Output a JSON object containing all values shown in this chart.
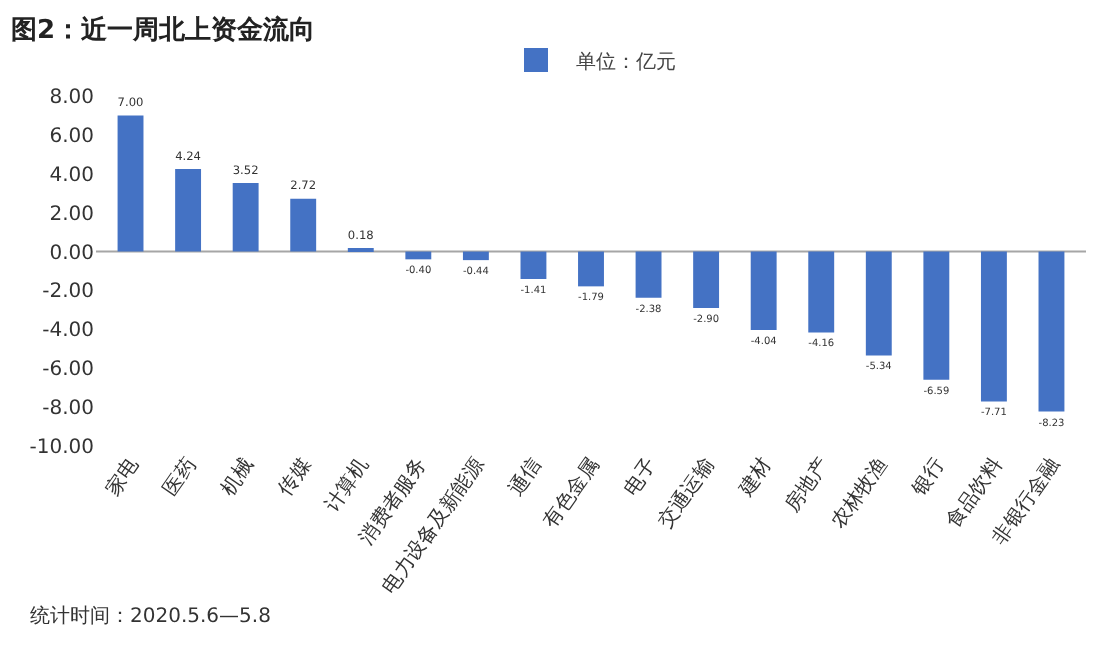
{
  "chart_data": {
    "type": "bar",
    "title": "图2：近一周北上资金流向",
    "categories": [
      "家电",
      "医药",
      "机械",
      "传媒",
      "计算机",
      "消费者服务",
      "电力设备及新能源",
      "通信",
      "有色金属",
      "电子",
      "交通运输",
      "建材",
      "房地产",
      "农林牧渔",
      "银行",
      "食品饮料",
      "非银行金融"
    ],
    "series": [
      {
        "name": "单位：亿元",
        "color": "#4472c4",
        "values": [
          7.0,
          4.24,
          3.52,
          2.72,
          0.18,
          -0.4,
          -0.44,
          -1.41,
          -1.79,
          -2.38,
          -2.9,
          -4.04,
          -4.16,
          -5.34,
          -6.59,
          -7.71,
          -8.23
        ],
        "value_labels": [
          "7.00",
          "4.24",
          "3.52",
          "2.72",
          "0.18",
          "-0.40",
          "-0.44",
          "-1.41",
          "-1.79",
          "-2.38",
          "-2.90",
          "-4.04",
          "-4.16",
          "-5.34",
          "-6.59",
          "-7.71",
          "-8.23"
        ]
      }
    ],
    "ylim": [
      -10,
      8
    ],
    "yticks": [
      {
        "value": 8,
        "label": "8.00"
      },
      {
        "value": 6,
        "label": "6.00"
      },
      {
        "value": 4,
        "label": "4.00"
      },
      {
        "value": 2,
        "label": "2.00"
      },
      {
        "value": 0,
        "label": "0.00"
      },
      {
        "value": -2,
        "label": "-2.00"
      },
      {
        "value": -4,
        "label": "-4.00"
      },
      {
        "value": -6,
        "label": "-6.00"
      },
      {
        "value": -8,
        "label": "-8.00"
      },
      {
        "value": -10,
        "label": "-10.00"
      }
    ],
    "grid": false,
    "legend": "top",
    "ref_lines": [
      {
        "axis": "y",
        "value": 0,
        "color": "#a6a6a6"
      }
    ],
    "annotations": [
      "统计时间：2020.5.6—5.8"
    ]
  }
}
